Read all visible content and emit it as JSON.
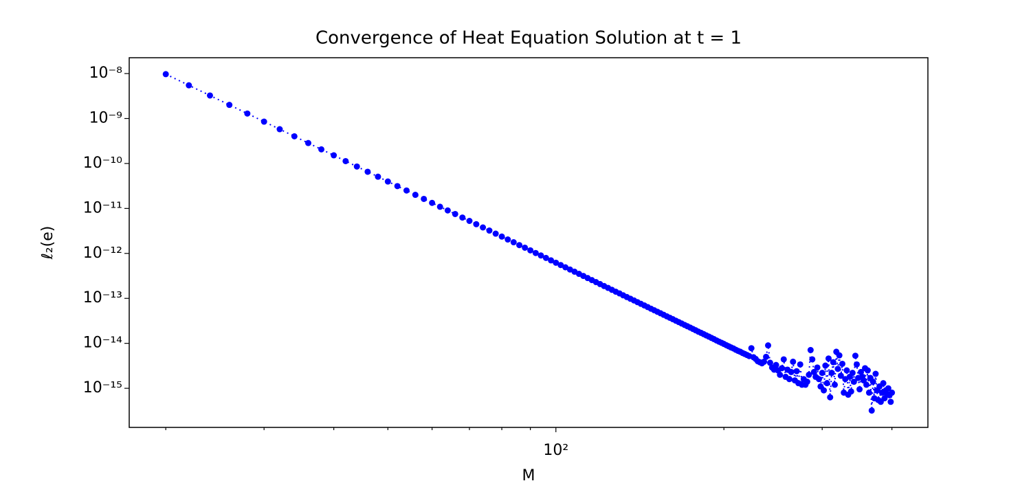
{
  "chart_data": {
    "type": "line",
    "title": "Convergence of Heat Equation Solution at t = 1",
    "x_label": "M",
    "y_label": "ℓ₂(e)",
    "x_scale": "log",
    "y_scale": "log",
    "xlim": [
      17.2,
      464
    ],
    "ylim": [
      1.35e-16,
      2.25e-08
    ],
    "xticks": [
      {
        "value": 100,
        "label": "10²"
      }
    ],
    "xminorticks": [
      20,
      30,
      40,
      50,
      60,
      70,
      80,
      90,
      200,
      300,
      400
    ],
    "yticks": [
      {
        "value": 1e-08,
        "label": "10⁻⁸"
      },
      {
        "value": 1e-09,
        "label": "10⁻⁹"
      },
      {
        "value": 1e-10,
        "label": "10⁻¹⁰"
      },
      {
        "value": 1e-11,
        "label": "10⁻¹¹"
      },
      {
        "value": 1e-12,
        "label": "10⁻¹²"
      },
      {
        "value": 1e-13,
        "label": "10⁻¹³"
      },
      {
        "value": 1e-14,
        "label": "10⁻¹⁴"
      },
      {
        "value": 1e-15,
        "label": "10⁻¹⁵"
      }
    ],
    "line_style": "dotted",
    "x": [
      20,
      22,
      24,
      26,
      28,
      30,
      32,
      34,
      36,
      38,
      40,
      42,
      44,
      46,
      48,
      50,
      52,
      54,
      56,
      58,
      60,
      62,
      64,
      66,
      68,
      70,
      72,
      74,
      76,
      78,
      80,
      82,
      84,
      86,
      88,
      90,
      92,
      94,
      96,
      98,
      100,
      102,
      104,
      106,
      108,
      110,
      112,
      114,
      116,
      118,
      120,
      122,
      124,
      126,
      128,
      130,
      132,
      134,
      136,
      138,
      140,
      142,
      144,
      146,
      148,
      150,
      152,
      154,
      156,
      158,
      160,
      162,
      164,
      166,
      168,
      170,
      172,
      174,
      176,
      178,
      180,
      182,
      184,
      186,
      188,
      190,
      192,
      194,
      196,
      198,
      200,
      202,
      204,
      206,
      208,
      210,
      212,
      214,
      216,
      218,
      220,
      222,
      224,
      226,
      228,
      230,
      232,
      234,
      236,
      238,
      240,
      242,
      244,
      246,
      248,
      250,
      252,
      254,
      256,
      258,
      260,
      262,
      264,
      266,
      268,
      270,
      272,
      274,
      276,
      278,
      280,
      282,
      284,
      286,
      288,
      290,
      292,
      294,
      296,
      298,
      300,
      302,
      304,
      306,
      308,
      310,
      312,
      314,
      316,
      318,
      320,
      322,
      324,
      326,
      328,
      330,
      332,
      334,
      336,
      338,
      340,
      342,
      344,
      346,
      348,
      350,
      352,
      354,
      356,
      358,
      360,
      362,
      364,
      366,
      368,
      370,
      372,
      374,
      376,
      378,
      380,
      382,
      384,
      386,
      388,
      390,
      392,
      394,
      396,
      398,
      400
    ],
    "series": [
      {
        "color": "#0000ff",
        "values": [
          9.7e-09,
          5.48e-09,
          3.25e-09,
          2.01e-09,
          1.29e-09,
          8.52e-10,
          5.78e-10,
          4.02e-10,
          2.85e-10,
          2.06e-10,
          1.52e-10,
          1.13e-10,
          8.55e-11,
          6.55e-11,
          5.08e-11,
          3.97e-11,
          3.14e-11,
          2.51e-11,
          2.01e-11,
          1.63e-11,
          1.33e-11,
          1.09e-11,
          9.03e-12,
          7.52e-12,
          6.28e-12,
          5.28e-12,
          4.46e-12,
          3.78e-12,
          3.22e-12,
          2.75e-12,
          2.37e-12,
          2.04e-12,
          1.77e-12,
          1.53e-12,
          1.34e-12,
          1.17e-12,
          1.02e-12,
          9e-13,
          7.93e-13,
          7.01e-13,
          6.21e-13,
          5.51e-13,
          4.91e-13,
          4.38e-13,
          3.92e-13,
          3.51e-13,
          3.15e-13,
          2.83e-13,
          2.55e-13,
          2.3e-13,
          2.08e-13,
          1.88e-13,
          1.71e-13,
          1.55e-13,
          1.41e-13,
          1.29e-13,
          1.17e-13,
          1.07e-13,
          9.8e-14,
          9e-14,
          8.24e-14,
          7.57e-14,
          6.97e-14,
          6.41e-14,
          5.9e-14,
          5.45e-14,
          5.04e-14,
          4.66e-14,
          4.31e-14,
          3.99e-14,
          3.7e-14,
          3.44e-14,
          3.19e-14,
          2.97e-14,
          2.76e-14,
          2.57e-14,
          2.4e-14,
          2.24e-14,
          2.09e-14,
          1.95e-14,
          1.82e-14,
          1.71e-14,
          1.6e-14,
          1.5e-14,
          1.41e-14,
          1.32e-14,
          1.24e-14,
          1.16e-14,
          1.09e-14,
          1.03e-14,
          9.7e-15,
          9.1e-15,
          8.6e-15,
          8.1e-15,
          7.7e-15,
          7.2e-15,
          6.8e-15,
          6.5e-15,
          6.1e-15,
          5.8e-15,
          5.5e-15,
          5.2e-15,
          7.8e-15,
          4.9e-15,
          4.5e-15,
          4e-15,
          3.8e-15,
          3.6e-15,
          3.9e-15,
          5e-15,
          9e-15,
          3.7e-15,
          2.9e-15,
          2.6e-15,
          3.3e-15,
          2.5e-15,
          2e-15,
          2.8e-15,
          4.4e-15,
          1.8e-15,
          2.6e-15,
          1.6e-15,
          2.3e-15,
          3.9e-15,
          1.5e-15,
          2.4e-15,
          1.3e-15,
          3.4e-15,
          1.2e-15,
          1.6e-15,
          1.2e-15,
          1.4e-15,
          2e-15,
          7.1e-15,
          4.4e-15,
          2.3e-15,
          1.8e-15,
          2.9e-15,
          1.6e-15,
          1.1e-15,
          2.2e-15,
          9e-16,
          3.2e-15,
          1.3e-15,
          4.6e-15,
          6.3e-16,
          2.2e-15,
          3.8e-15,
          1.2e-15,
          6.5e-15,
          2.7e-15,
          5.4e-15,
          1.9e-15,
          3.5e-15,
          8e-16,
          1.6e-15,
          2.5e-15,
          7.2e-16,
          1.8e-15,
          8.5e-16,
          2.2e-15,
          1.4e-15,
          5.3e-15,
          3.4e-15,
          1.7e-15,
          9.5e-16,
          2.3e-15,
          1.8e-15,
          1.5e-15,
          2.8e-15,
          1.2e-15,
          2.5e-15,
          8e-16,
          1.7e-15,
          3.2e-16,
          1.4e-15,
          6e-16,
          2.1e-15,
          9e-16,
          5.5e-16,
          1.1e-15,
          5e-16,
          8e-16,
          1.3e-15,
          6e-16,
          9e-16,
          7.5e-16,
          1e-15,
          7e-16,
          5e-16,
          8e-16
        ]
      }
    ]
  }
}
